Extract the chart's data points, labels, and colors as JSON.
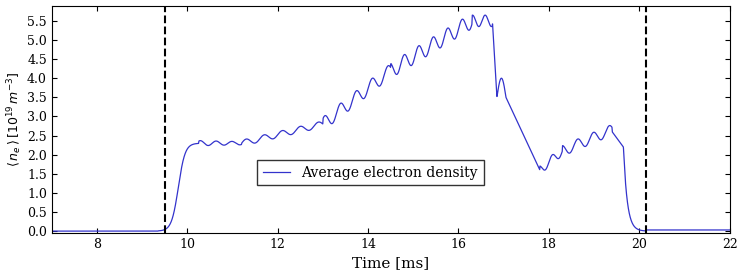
{
  "xlabel": "Time [ms]",
  "xlim": [
    7,
    22
  ],
  "ylim": [
    -0.05,
    5.9
  ],
  "yticks": [
    0.0,
    0.5,
    1.0,
    1.5,
    2.0,
    2.5,
    3.0,
    3.5,
    4.0,
    4.5,
    5.0,
    5.5
  ],
  "xticks": [
    8,
    10,
    12,
    14,
    16,
    18,
    20,
    22
  ],
  "line_color": "#3333cc",
  "vline1_x": 9.5,
  "vline2_x": 20.15,
  "legend_label": "Average electron density"
}
